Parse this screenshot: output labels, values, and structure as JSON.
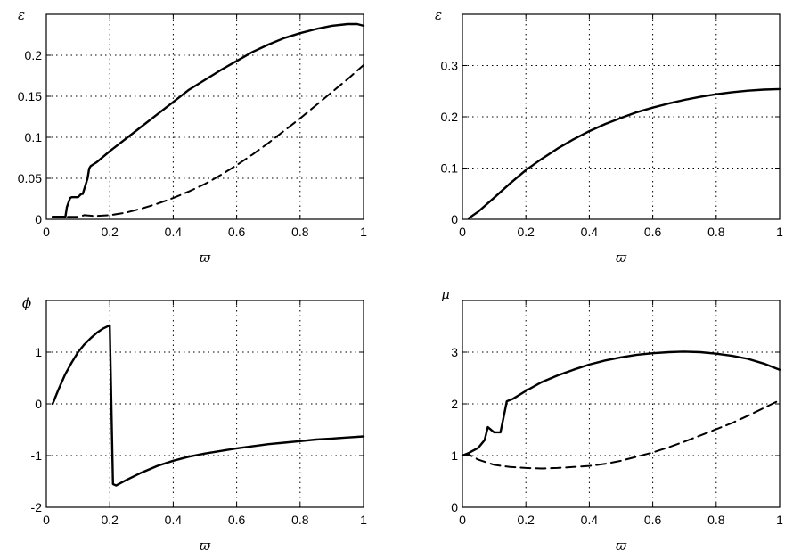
{
  "chart_data": [
    {
      "id": "eps-left",
      "type": "line",
      "ylabel": "ε",
      "xlabel": "ϖ",
      "xlim": [
        0,
        1
      ],
      "ylim": [
        0,
        0.25
      ],
      "xticks": [
        0,
        0.2,
        0.4,
        0.6,
        0.8,
        1
      ],
      "xtick_labels": [
        "0",
        "0.2",
        "0.4",
        "0.6",
        "0.8",
        "1"
      ],
      "yticks": [
        0,
        0.05,
        0.1,
        0.15,
        0.2
      ],
      "ytick_labels": [
        "0",
        "0.05",
        "0.1",
        "0.15",
        "0.2"
      ],
      "grid": true,
      "series": [
        {
          "style": "solid",
          "x": [
            0.02,
            0.06,
            0.065,
            0.075,
            0.08,
            0.1,
            0.11,
            0.115,
            0.13,
            0.135,
            0.14,
            0.16,
            0.2,
            0.25,
            0.3,
            0.35,
            0.4,
            0.45,
            0.5,
            0.55,
            0.6,
            0.65,
            0.7,
            0.75,
            0.8,
            0.85,
            0.9,
            0.95,
            0.98,
            1.0
          ],
          "y": [
            0.003,
            0.003,
            0.015,
            0.026,
            0.027,
            0.027,
            0.031,
            0.031,
            0.05,
            0.062,
            0.065,
            0.07,
            0.083,
            0.098,
            0.113,
            0.128,
            0.143,
            0.158,
            0.17,
            0.182,
            0.193,
            0.204,
            0.213,
            0.221,
            0.227,
            0.232,
            0.236,
            0.238,
            0.238,
            0.236
          ]
        },
        {
          "style": "dashed",
          "x": [
            0.02,
            0.1,
            0.12,
            0.15,
            0.2,
            0.25,
            0.3,
            0.35,
            0.4,
            0.45,
            0.5,
            0.55,
            0.6,
            0.65,
            0.7,
            0.75,
            0.8,
            0.85,
            0.9,
            0.95,
            1.0
          ],
          "y": [
            0.003,
            0.003,
            0.005,
            0.004,
            0.005,
            0.008,
            0.013,
            0.019,
            0.026,
            0.034,
            0.043,
            0.054,
            0.066,
            0.079,
            0.093,
            0.108,
            0.123,
            0.139,
            0.155,
            0.171,
            0.188
          ]
        }
      ]
    },
    {
      "id": "eps-right",
      "type": "line",
      "ylabel": "ε",
      "xlabel": "ϖ",
      "xlim": [
        0,
        1
      ],
      "ylim": [
        0,
        0.4
      ],
      "xticks": [
        0,
        0.2,
        0.4,
        0.6,
        0.8,
        1
      ],
      "xtick_labels": [
        "0",
        "0.2",
        "0.4",
        "0.6",
        "0.8",
        "1"
      ],
      "yticks": [
        0,
        0.1,
        0.2,
        0.3
      ],
      "ytick_labels": [
        "0",
        "0.1",
        "0.2",
        "0.3"
      ],
      "grid": true,
      "series": [
        {
          "style": "solid",
          "x": [
            0.02,
            0.05,
            0.1,
            0.15,
            0.2,
            0.25,
            0.3,
            0.35,
            0.4,
            0.45,
            0.5,
            0.55,
            0.6,
            0.65,
            0.7,
            0.75,
            0.8,
            0.85,
            0.9,
            0.95,
            1.0
          ],
          "y": [
            0.002,
            0.015,
            0.042,
            0.07,
            0.096,
            0.118,
            0.138,
            0.156,
            0.172,
            0.186,
            0.198,
            0.209,
            0.218,
            0.226,
            0.233,
            0.239,
            0.244,
            0.248,
            0.251,
            0.253,
            0.254
          ]
        }
      ]
    },
    {
      "id": "phi",
      "type": "line",
      "ylabel": "ϕ",
      "xlabel": "ϖ",
      "xlim": [
        0,
        1
      ],
      "ylim": [
        -2,
        2
      ],
      "xticks": [
        0,
        0.2,
        0.4,
        0.6,
        0.8,
        1
      ],
      "xtick_labels": [
        "0",
        "0.2",
        "0.4",
        "0.6",
        "0.8",
        "1"
      ],
      "yticks": [
        -2,
        -1,
        0,
        1
      ],
      "ytick_labels": [
        "-2",
        "-1",
        "0",
        "1"
      ],
      "grid": true,
      "series": [
        {
          "style": "solid",
          "x": [
            0.02,
            0.04,
            0.06,
            0.08,
            0.1,
            0.12,
            0.14,
            0.16,
            0.18,
            0.2,
            0.21,
            0.22,
            0.25,
            0.3,
            0.35,
            0.4,
            0.45,
            0.5,
            0.55,
            0.6,
            0.65,
            0.7,
            0.75,
            0.8,
            0.85,
            0.9,
            0.95,
            1.0
          ],
          "y": [
            0.0,
            0.3,
            0.58,
            0.8,
            1.0,
            1.15,
            1.27,
            1.38,
            1.46,
            1.52,
            -1.55,
            -1.58,
            -1.48,
            -1.33,
            -1.2,
            -1.1,
            -1.02,
            -0.96,
            -0.91,
            -0.86,
            -0.82,
            -0.78,
            -0.75,
            -0.72,
            -0.69,
            -0.67,
            -0.65,
            -0.63
          ]
        }
      ]
    },
    {
      "id": "mu",
      "type": "line",
      "ylabel": "μ",
      "xlabel": "ϖ",
      "xlim": [
        0,
        1
      ],
      "ylim": [
        0,
        4
      ],
      "xticks": [
        0,
        0.2,
        0.4,
        0.6,
        0.8,
        1
      ],
      "xtick_labels": [
        "0",
        "0.2",
        "0.4",
        "0.6",
        "0.8",
        "1"
      ],
      "yticks": [
        0,
        1,
        2,
        3
      ],
      "ytick_labels": [
        "0",
        "1",
        "2",
        "3"
      ],
      "grid": true,
      "series": [
        {
          "style": "solid",
          "x": [
            0.0,
            0.02,
            0.05,
            0.07,
            0.08,
            0.1,
            0.12,
            0.13,
            0.14,
            0.16,
            0.2,
            0.25,
            0.3,
            0.35,
            0.4,
            0.45,
            0.5,
            0.55,
            0.6,
            0.65,
            0.7,
            0.75,
            0.8,
            0.85,
            0.9,
            0.95,
            1.0
          ],
          "y": [
            1.0,
            1.05,
            1.15,
            1.3,
            1.55,
            1.45,
            1.45,
            1.75,
            2.05,
            2.1,
            2.25,
            2.42,
            2.55,
            2.66,
            2.76,
            2.84,
            2.9,
            2.95,
            2.98,
            3.0,
            3.01,
            3.0,
            2.97,
            2.93,
            2.87,
            2.78,
            2.66
          ]
        },
        {
          "style": "dashed",
          "x": [
            0.0,
            0.02,
            0.05,
            0.1,
            0.15,
            0.2,
            0.25,
            0.3,
            0.35,
            0.4,
            0.45,
            0.5,
            0.55,
            0.6,
            0.65,
            0.7,
            0.75,
            0.8,
            0.85,
            0.9,
            0.95,
            1.0
          ],
          "y": [
            1.0,
            1.02,
            0.92,
            0.82,
            0.78,
            0.76,
            0.75,
            0.76,
            0.78,
            0.8,
            0.84,
            0.9,
            0.98,
            1.06,
            1.16,
            1.27,
            1.39,
            1.51,
            1.63,
            1.77,
            1.92,
            2.07
          ]
        }
      ]
    }
  ]
}
